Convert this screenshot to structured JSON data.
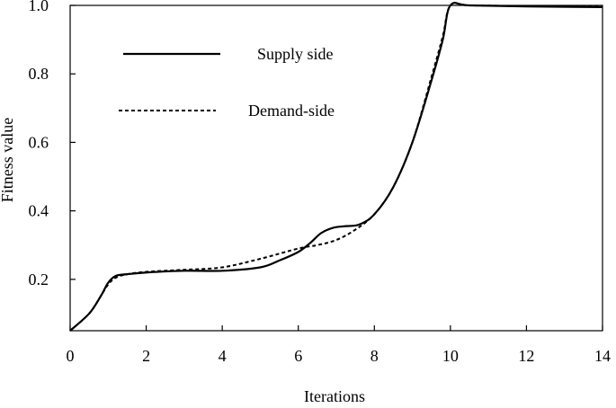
{
  "chart_data": {
    "type": "line",
    "title": "",
    "xlabel": "Iterations",
    "ylabel": "Fitness value",
    "xlim": [
      0,
      14
    ],
    "ylim": [
      0.05,
      1.0
    ],
    "x_ticks": [
      0,
      2,
      4,
      6,
      8,
      10,
      12,
      14
    ],
    "x_tick_labels": [
      "0",
      "2",
      "4",
      "6",
      "8",
      "10",
      "12",
      "14"
    ],
    "y_ticks": [
      0.2,
      0.4,
      0.6,
      0.8,
      1.0
    ],
    "y_tick_labels": [
      "0.2",
      "0.4",
      "0.6",
      "0.8",
      "1.0"
    ],
    "grid": false,
    "legend": "top-left",
    "series": [
      {
        "name": "Supply side",
        "style": "solid",
        "color": "#000000",
        "x": [
          0,
          0.5,
          0.8,
          1.0,
          1.2,
          1.5,
          2.0,
          3.0,
          4.0,
          5.0,
          5.5,
          6.0,
          6.3,
          6.6,
          6.9,
          7.2,
          7.6,
          8.0,
          8.5,
          9.0,
          9.5,
          9.8,
          10.0,
          10.5,
          12.0,
          14.0
        ],
        "y": [
          0.05,
          0.1,
          0.15,
          0.19,
          0.21,
          0.215,
          0.22,
          0.225,
          0.225,
          0.235,
          0.255,
          0.28,
          0.305,
          0.335,
          0.35,
          0.355,
          0.36,
          0.39,
          0.47,
          0.6,
          0.78,
          0.9,
          1.0,
          1.0,
          0.997,
          0.995
        ]
      },
      {
        "name": "Demand-side",
        "style": "dashed",
        "color": "#000000",
        "x": [
          0,
          0.5,
          0.8,
          1.0,
          1.2,
          1.5,
          2.0,
          3.0,
          4.0,
          5.0,
          6.0,
          6.5,
          7.0,
          7.5,
          8.0,
          8.5,
          9.0,
          9.5,
          9.8,
          10.0,
          10.5,
          12.0,
          14.0
        ],
        "y": [
          0.05,
          0.1,
          0.15,
          0.185,
          0.205,
          0.215,
          0.222,
          0.228,
          0.235,
          0.26,
          0.29,
          0.3,
          0.315,
          0.345,
          0.39,
          0.47,
          0.6,
          0.79,
          0.91,
          1.0,
          1.0,
          0.998,
          0.997
        ]
      }
    ]
  }
}
